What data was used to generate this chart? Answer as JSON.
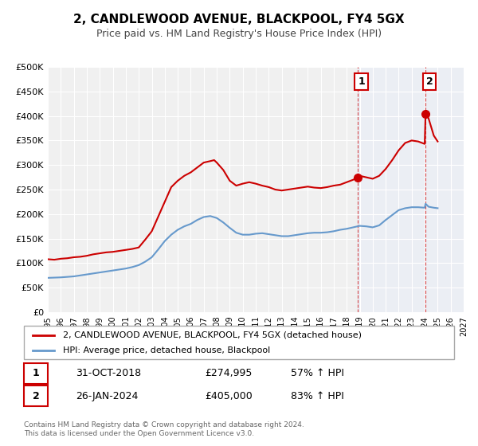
{
  "title": "2, CANDLEWOOD AVENUE, BLACKPOOL, FY4 5GX",
  "subtitle": "Price paid vs. HM Land Registry's House Price Index (HPI)",
  "legend_label_red": "2, CANDLEWOOD AVENUE, BLACKPOOL, FY4 5GX (detached house)",
  "legend_label_blue": "HPI: Average price, detached house, Blackpool",
  "annotation1_label": "1",
  "annotation1_date": "31-OCT-2018",
  "annotation1_price": "£274,995",
  "annotation1_hpi": "57% ↑ HPI",
  "annotation2_label": "2",
  "annotation2_date": "26-JAN-2024",
  "annotation2_price": "£405,000",
  "annotation2_hpi": "83% ↑ HPI",
  "footer": "Contains HM Land Registry data © Crown copyright and database right 2024.\nThis data is licensed under the Open Government Licence v3.0.",
  "xmin": 1995,
  "xmax": 2027,
  "ymin": 0,
  "ymax": 500000,
  "yticks": [
    0,
    50000,
    100000,
    150000,
    200000,
    250000,
    300000,
    350000,
    400000,
    450000,
    500000
  ],
  "ytick_labels": [
    "£0",
    "£50K",
    "£100K",
    "£150K",
    "£200K",
    "£250K",
    "£300K",
    "£350K",
    "£400K",
    "£450K",
    "£500K"
  ],
  "xticks": [
    1995,
    1996,
    1997,
    1998,
    1999,
    2000,
    2001,
    2002,
    2003,
    2004,
    2005,
    2006,
    2007,
    2008,
    2009,
    2010,
    2011,
    2012,
    2013,
    2014,
    2015,
    2016,
    2017,
    2018,
    2019,
    2020,
    2021,
    2022,
    2023,
    2024,
    2025,
    2026,
    2027
  ],
  "red_color": "#cc0000",
  "blue_color": "#6699cc",
  "marker1_x": 2018.83,
  "marker1_y": 274995,
  "marker2_x": 2024.07,
  "marker2_y": 405000,
  "vline1_x": 2018.83,
  "vline2_x": 2024.07,
  "shade_start": 2018.83,
  "shade_end": 2027,
  "red_line": {
    "x": [
      1995.0,
      1995.5,
      1996.0,
      1996.5,
      1997.0,
      1997.5,
      1998.0,
      1998.5,
      1999.0,
      1999.5,
      2000.0,
      2000.5,
      2001.0,
      2001.5,
      2002.0,
      2002.5,
      2003.0,
      2003.5,
      2004.0,
      2004.5,
      2005.0,
      2005.5,
      2006.0,
      2006.5,
      2007.0,
      2007.5,
      2007.8,
      2008.0,
      2008.5,
      2009.0,
      2009.5,
      2010.0,
      2010.5,
      2011.0,
      2011.5,
      2012.0,
      2012.5,
      2013.0,
      2013.5,
      2014.0,
      2014.5,
      2015.0,
      2015.5,
      2016.0,
      2016.5,
      2017.0,
      2017.5,
      2018.0,
      2018.5,
      2018.83,
      2019.0,
      2019.5,
      2020.0,
      2020.5,
      2021.0,
      2021.5,
      2022.0,
      2022.5,
      2023.0,
      2023.5,
      2024.0,
      2024.07,
      2024.3,
      2024.7,
      2025.0
    ],
    "y": [
      108000,
      107000,
      109000,
      110000,
      112000,
      113000,
      115000,
      118000,
      120000,
      122000,
      123000,
      125000,
      127000,
      129000,
      132000,
      148000,
      165000,
      195000,
      225000,
      255000,
      268000,
      278000,
      285000,
      295000,
      305000,
      308000,
      310000,
      305000,
      290000,
      268000,
      258000,
      262000,
      265000,
      262000,
      258000,
      255000,
      250000,
      248000,
      250000,
      252000,
      254000,
      256000,
      254000,
      253000,
      255000,
      258000,
      260000,
      265000,
      270000,
      274995,
      278000,
      275000,
      272000,
      278000,
      292000,
      310000,
      330000,
      345000,
      350000,
      348000,
      343000,
      405000,
      395000,
      360000,
      348000
    ]
  },
  "blue_line": {
    "x": [
      1995.0,
      1995.5,
      1996.0,
      1996.5,
      1997.0,
      1997.5,
      1998.0,
      1998.5,
      1999.0,
      1999.5,
      2000.0,
      2000.5,
      2001.0,
      2001.5,
      2002.0,
      2002.5,
      2003.0,
      2003.5,
      2004.0,
      2004.5,
      2005.0,
      2005.5,
      2006.0,
      2006.5,
      2007.0,
      2007.5,
      2008.0,
      2008.5,
      2009.0,
      2009.5,
      2010.0,
      2010.5,
      2011.0,
      2011.5,
      2012.0,
      2012.5,
      2013.0,
      2013.5,
      2014.0,
      2014.5,
      2015.0,
      2015.5,
      2016.0,
      2016.5,
      2017.0,
      2017.5,
      2018.0,
      2018.5,
      2018.83,
      2019.0,
      2019.5,
      2020.0,
      2020.5,
      2021.0,
      2021.5,
      2022.0,
      2022.5,
      2023.0,
      2023.5,
      2024.0,
      2024.07,
      2024.3,
      2024.7,
      2025.0
    ],
    "y": [
      70000,
      70500,
      71000,
      72000,
      73000,
      75000,
      77000,
      79000,
      81000,
      83000,
      85000,
      87000,
      89000,
      92000,
      96000,
      103000,
      112000,
      128000,
      145000,
      158000,
      168000,
      175000,
      180000,
      188000,
      194000,
      196000,
      192000,
      183000,
      172000,
      162000,
      158000,
      158000,
      160000,
      161000,
      159000,
      157000,
      155000,
      155000,
      157000,
      159000,
      161000,
      162000,
      162000,
      163000,
      165000,
      168000,
      170000,
      173000,
      175000,
      176000,
      175000,
      173000,
      177000,
      188000,
      198000,
      208000,
      212000,
      214000,
      214000,
      213000,
      221000,
      215000,
      213000,
      212000
    ]
  }
}
